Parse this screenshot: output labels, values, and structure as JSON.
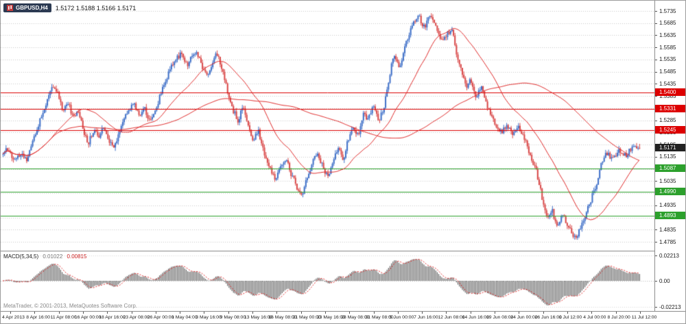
{
  "window": {
    "symbol_label": "GBPUSD,H4",
    "ohlc_text": "1.5172 1.5188 1.5166 1.5171",
    "copyright": "MetaTrader, © 2001-2013, MetaQuotes Software Corp."
  },
  "chart_data": {
    "type": "candlestick",
    "symbol": "GBPUSD",
    "timeframe": "H4",
    "last_ohlc": {
      "open": 1.5172,
      "high": 1.5188,
      "low": 1.5166,
      "close": 1.5171
    },
    "bars": 432,
    "colors": {
      "up": "#3e6fc8",
      "down": "#d94848",
      "ma": "#e02828",
      "grid": "#c9c9c9",
      "histogram": "#595959",
      "signal": "#dd2222",
      "level_red": "#dd0000",
      "level_green": "#2ca02c",
      "current_badge": "#222222"
    },
    "y_axis": {
      "ticks": [
        "1.5735",
        "1.5685",
        "1.5635",
        "1.5585",
        "1.5535",
        "1.5485",
        "1.5435",
        "1.5385",
        "1.5335",
        "1.5285",
        "1.5235",
        "1.5185",
        "1.5135",
        "1.5085",
        "1.5035",
        "1.4985",
        "1.4935",
        "1.4885",
        "1.4835",
        "1.4785"
      ]
    },
    "levels": [
      {
        "price": 1.54,
        "label": "1.5400",
        "color": "#dd0000",
        "line": true
      },
      {
        "price": 1.5331,
        "label": "1.5331",
        "color": "#dd0000",
        "line": true
      },
      {
        "price": 1.5245,
        "label": "1.5245",
        "color": "#dd0000",
        "line": true
      },
      {
        "price": 1.5171,
        "label": "1.5171",
        "color": "#222222",
        "line": false
      },
      {
        "price": 1.5087,
        "label": "1.5087",
        "color": "#2ca02c",
        "line": true
      },
      {
        "price": 1.499,
        "label": "1.4990",
        "color": "#2ca02c",
        "line": true
      },
      {
        "price": 1.4893,
        "label": "1.4893",
        "color": "#2ca02c",
        "line": true
      }
    ],
    "x_labels": [
      "4 Apr 2013",
      "8 Apr 16:00",
      "11 Apr 08:00",
      "16 Apr 00:00",
      "18 Apr 16:00",
      "23 Apr 08:00",
      "26 Apr 00:00",
      "1 May 04:00",
      "3 May 16:00",
      "9 May 08:00",
      "13 May 16:00",
      "16 May 08:00",
      "21 May 00:00",
      "23 May 16:00",
      "28 May 08:00",
      "31 May 08:00",
      "5 Jun 00:00",
      "7 Jun 16:00",
      "12 Jun 08:00",
      "14 Jun 16:00",
      "19 Jun 08:00",
      "24 Jun 00:00",
      "26 Jun 16:00",
      "1 Jul 12:00",
      "4 Jul 00:00",
      "8 Jul 20:00",
      "11 Jul 12:00"
    ],
    "ma_periods": [
      34,
      120
    ],
    "price_path": [
      [
        0.0,
        1.514
      ],
      [
        0.008,
        1.5175
      ],
      [
        0.018,
        1.5115
      ],
      [
        0.028,
        1.515
      ],
      [
        0.038,
        1.5125
      ],
      [
        0.048,
        1.5205
      ],
      [
        0.058,
        1.529
      ],
      [
        0.068,
        1.535
      ],
      [
        0.078,
        1.5425
      ],
      [
        0.086,
        1.539
      ],
      [
        0.094,
        1.532
      ],
      [
        0.102,
        1.5355
      ],
      [
        0.11,
        1.5295
      ],
      [
        0.118,
        1.533
      ],
      [
        0.126,
        1.524
      ],
      [
        0.134,
        1.5195
      ],
      [
        0.142,
        1.5245
      ],
      [
        0.15,
        1.5215
      ],
      [
        0.158,
        1.5262
      ],
      [
        0.166,
        1.52
      ],
      [
        0.174,
        1.5172
      ],
      [
        0.182,
        1.5235
      ],
      [
        0.19,
        1.5285
      ],
      [
        0.198,
        1.533
      ],
      [
        0.206,
        1.5358
      ],
      [
        0.214,
        1.53
      ],
      [
        0.222,
        1.5332
      ],
      [
        0.23,
        1.5282
      ],
      [
        0.238,
        1.5318
      ],
      [
        0.247,
        1.539
      ],
      [
        0.255,
        1.545
      ],
      [
        0.264,
        1.5505
      ],
      [
        0.272,
        1.554
      ],
      [
        0.281,
        1.5562
      ],
      [
        0.289,
        1.5512
      ],
      [
        0.297,
        1.5552
      ],
      [
        0.305,
        1.5558
      ],
      [
        0.313,
        1.55
      ],
      [
        0.321,
        1.5462
      ],
      [
        0.329,
        1.553
      ],
      [
        0.337,
        1.556
      ],
      [
        0.345,
        1.5482
      ],
      [
        0.353,
        1.5405
      ],
      [
        0.361,
        1.533
      ],
      [
        0.369,
        1.5282
      ],
      [
        0.377,
        1.534
      ],
      [
        0.385,
        1.527
      ],
      [
        0.393,
        1.5205
      ],
      [
        0.401,
        1.5245
      ],
      [
        0.409,
        1.5162
      ],
      [
        0.418,
        1.5102
      ],
      [
        0.427,
        1.5042
      ],
      [
        0.436,
        1.5085
      ],
      [
        0.445,
        1.5135
      ],
      [
        0.453,
        1.5062
      ],
      [
        0.461,
        1.5015
      ],
      [
        0.469,
        1.4978
      ],
      [
        0.477,
        1.5042
      ],
      [
        0.486,
        1.5112
      ],
      [
        0.494,
        1.515
      ],
      [
        0.502,
        1.5098
      ],
      [
        0.51,
        1.5052
      ],
      [
        0.518,
        1.5112
      ],
      [
        0.526,
        1.517
      ],
      [
        0.534,
        1.5122
      ],
      [
        0.542,
        1.5202
      ],
      [
        0.55,
        1.5258
      ],
      [
        0.558,
        1.5228
      ],
      [
        0.566,
        1.5308
      ],
      [
        0.574,
        1.5288
      ],
      [
        0.582,
        1.5348
      ],
      [
        0.59,
        1.5282
      ],
      [
        0.598,
        1.5335
      ],
      [
        0.606,
        1.5452
      ],
      [
        0.614,
        1.5558
      ],
      [
        0.622,
        1.5502
      ],
      [
        0.63,
        1.5572
      ],
      [
        0.638,
        1.5642
      ],
      [
        0.646,
        1.5692
      ],
      [
        0.653,
        1.5722
      ],
      [
        0.66,
        1.5662
      ],
      [
        0.668,
        1.57
      ],
      [
        0.675,
        1.5712
      ],
      [
        0.682,
        1.5652
      ],
      [
        0.69,
        1.5602
      ],
      [
        0.698,
        1.5645
      ],
      [
        0.705,
        1.5662
      ],
      [
        0.712,
        1.5562
      ],
      [
        0.72,
        1.5482
      ],
      [
        0.728,
        1.5425
      ],
      [
        0.735,
        1.5455
      ],
      [
        0.743,
        1.5385
      ],
      [
        0.751,
        1.5422
      ],
      [
        0.759,
        1.5352
      ],
      [
        0.767,
        1.5302
      ],
      [
        0.775,
        1.5262
      ],
      [
        0.783,
        1.5232
      ],
      [
        0.791,
        1.5272
      ],
      [
        0.799,
        1.5225
      ],
      [
        0.807,
        1.5262
      ],
      [
        0.815,
        1.5232
      ],
      [
        0.823,
        1.5182
      ],
      [
        0.831,
        1.5122
      ],
      [
        0.839,
        1.5062
      ],
      [
        0.847,
        1.4965
      ],
      [
        0.855,
        1.4892
      ],
      [
        0.862,
        1.4918
      ],
      [
        0.87,
        1.4852
      ],
      [
        0.878,
        1.4895
      ],
      [
        0.885,
        1.4862
      ],
      [
        0.892,
        1.4832
      ],
      [
        0.9,
        1.4798
      ],
      [
        0.908,
        1.4855
      ],
      [
        0.916,
        1.4905
      ],
      [
        0.924,
        1.4962
      ],
      [
        0.932,
        1.5025
      ],
      [
        0.94,
        1.5105
      ],
      [
        0.948,
        1.5155
      ],
      [
        0.958,
        1.5122
      ],
      [
        0.968,
        1.5162
      ],
      [
        0.978,
        1.5142
      ],
      [
        0.988,
        1.5168
      ],
      [
        1.0,
        1.5171
      ]
    ],
    "macd": {
      "label": "MACD(5,34,5)",
      "value_main": "0.01022",
      "value_signal": "0.00815",
      "axis_ticks": [
        "0.02213",
        "0.00",
        "-0.02213"
      ],
      "fast": 5,
      "slow": 34,
      "signal_period": 5
    }
  }
}
